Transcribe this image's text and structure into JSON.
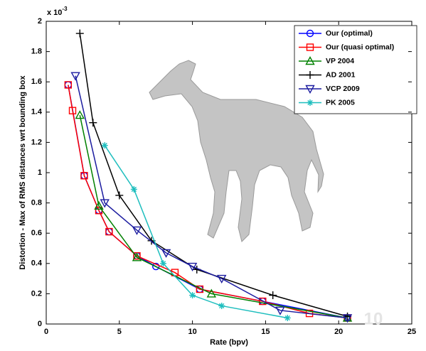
{
  "chart_data": {
    "type": "line",
    "x_label": "Rate (bpv)",
    "y_label": "Distortion - Max of RMS distances wrt bounding box",
    "y_multiplier": {
      "base": "x 10",
      "exponent": "-3"
    },
    "watermark": "10",
    "xlim": [
      0,
      25
    ],
    "xticks": [
      0,
      5,
      10,
      15,
      20,
      25
    ],
    "ylim": [
      0,
      2
    ],
    "yticks": [
      0,
      0.2,
      0.4,
      0.6,
      0.8,
      1,
      1.2,
      1.4,
      1.6,
      1.8,
      2
    ],
    "legend": "upper right",
    "series": [
      {
        "name": "Our (optimal)",
        "color": "#0000ff",
        "marker": "circle",
        "x": [
          1.5,
          2.6,
          3.6,
          4.3,
          6.2,
          7.5,
          10.5,
          14.8,
          20.6
        ],
        "values": [
          1.58,
          0.98,
          0.75,
          0.61,
          0.45,
          0.38,
          0.23,
          0.15,
          0.04
        ]
      },
      {
        "name": "Our (quasi optimal)",
        "color": "#ff0000",
        "marker": "square",
        "x": [
          1.5,
          1.8,
          2.6,
          3.6,
          4.3,
          6.2,
          8.8,
          10.5,
          14.8,
          18.0,
          20.6
        ],
        "values": [
          1.58,
          1.41,
          0.98,
          0.75,
          0.61,
          0.45,
          0.34,
          0.23,
          0.15,
          0.07,
          0.04
        ]
      },
      {
        "name": "VP 2004",
        "color": "#008000",
        "marker": "triangle-up",
        "x": [
          2.3,
          3.6,
          6.2,
          11.3,
          20.6
        ],
        "values": [
          1.38,
          0.78,
          0.44,
          0.2,
          0.04
        ]
      },
      {
        "name": "AD 2001",
        "color": "#000000",
        "marker": "plus",
        "x": [
          2.3,
          3.2,
          5.0,
          7.2,
          10.3,
          15.5,
          20.6
        ],
        "values": [
          1.92,
          1.33,
          0.85,
          0.55,
          0.36,
          0.19,
          0.05
        ]
      },
      {
        "name": "VCP 2009",
        "color": "#1c1ca0",
        "marker": "triangle-down",
        "x": [
          2.0,
          4.0,
          6.2,
          8.2,
          10.0,
          12.0,
          16.0,
          20.6
        ],
        "values": [
          1.64,
          0.8,
          0.62,
          0.47,
          0.38,
          0.3,
          0.09,
          0.04
        ]
      },
      {
        "name": "PK 2005",
        "color": "#1ebebe",
        "marker": "star",
        "x": [
          4.0,
          6.0,
          8.0,
          10.0,
          12.0,
          16.5
        ],
        "values": [
          1.18,
          0.89,
          0.4,
          0.19,
          0.12,
          0.04
        ]
      }
    ]
  }
}
